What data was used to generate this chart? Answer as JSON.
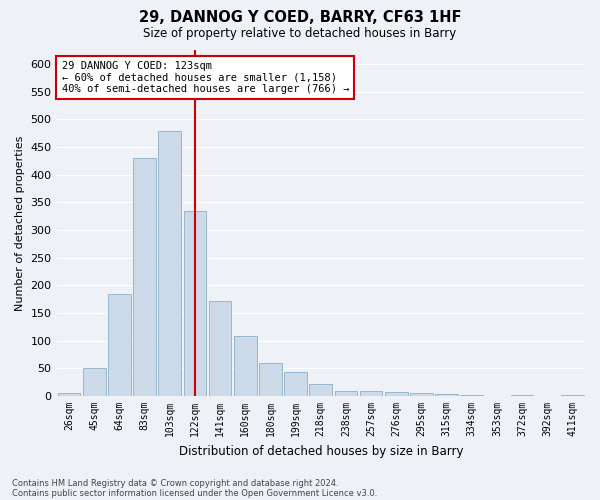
{
  "title": "29, DANNOG Y COED, BARRY, CF63 1HF",
  "subtitle": "Size of property relative to detached houses in Barry",
  "xlabel": "Distribution of detached houses by size in Barry",
  "ylabel": "Number of detached properties",
  "bar_color": "#ccd9e8",
  "bar_edge_color": "#8aafc8",
  "vline_color": "#cc0000",
  "categories": [
    "26sqm",
    "45sqm",
    "64sqm",
    "83sqm",
    "103sqm",
    "122sqm",
    "141sqm",
    "160sqm",
    "180sqm",
    "199sqm",
    "218sqm",
    "238sqm",
    "257sqm",
    "276sqm",
    "295sqm",
    "315sqm",
    "334sqm",
    "353sqm",
    "372sqm",
    "392sqm",
    "411sqm"
  ],
  "values": [
    5,
    50,
    185,
    430,
    478,
    335,
    172,
    108,
    60,
    43,
    22,
    10,
    10,
    8,
    5,
    3,
    2,
    1,
    2,
    1,
    2
  ],
  "ylim": [
    0,
    625
  ],
  "yticks": [
    0,
    50,
    100,
    150,
    200,
    250,
    300,
    350,
    400,
    450,
    500,
    550,
    600
  ],
  "vline_category": "122sqm",
  "annotation_text": "29 DANNOG Y COED: 123sqm\n← 60% of detached houses are smaller (1,158)\n40% of semi-detached houses are larger (766) →",
  "annotation_box_color": "white",
  "annotation_box_edge": "#cc0000",
  "footer_line1": "Contains HM Land Registry data © Crown copyright and database right 2024.",
  "footer_line2": "Contains public sector information licensed under the Open Government Licence v3.0.",
  "background_color": "#eef2f7",
  "grid_color": "white"
}
